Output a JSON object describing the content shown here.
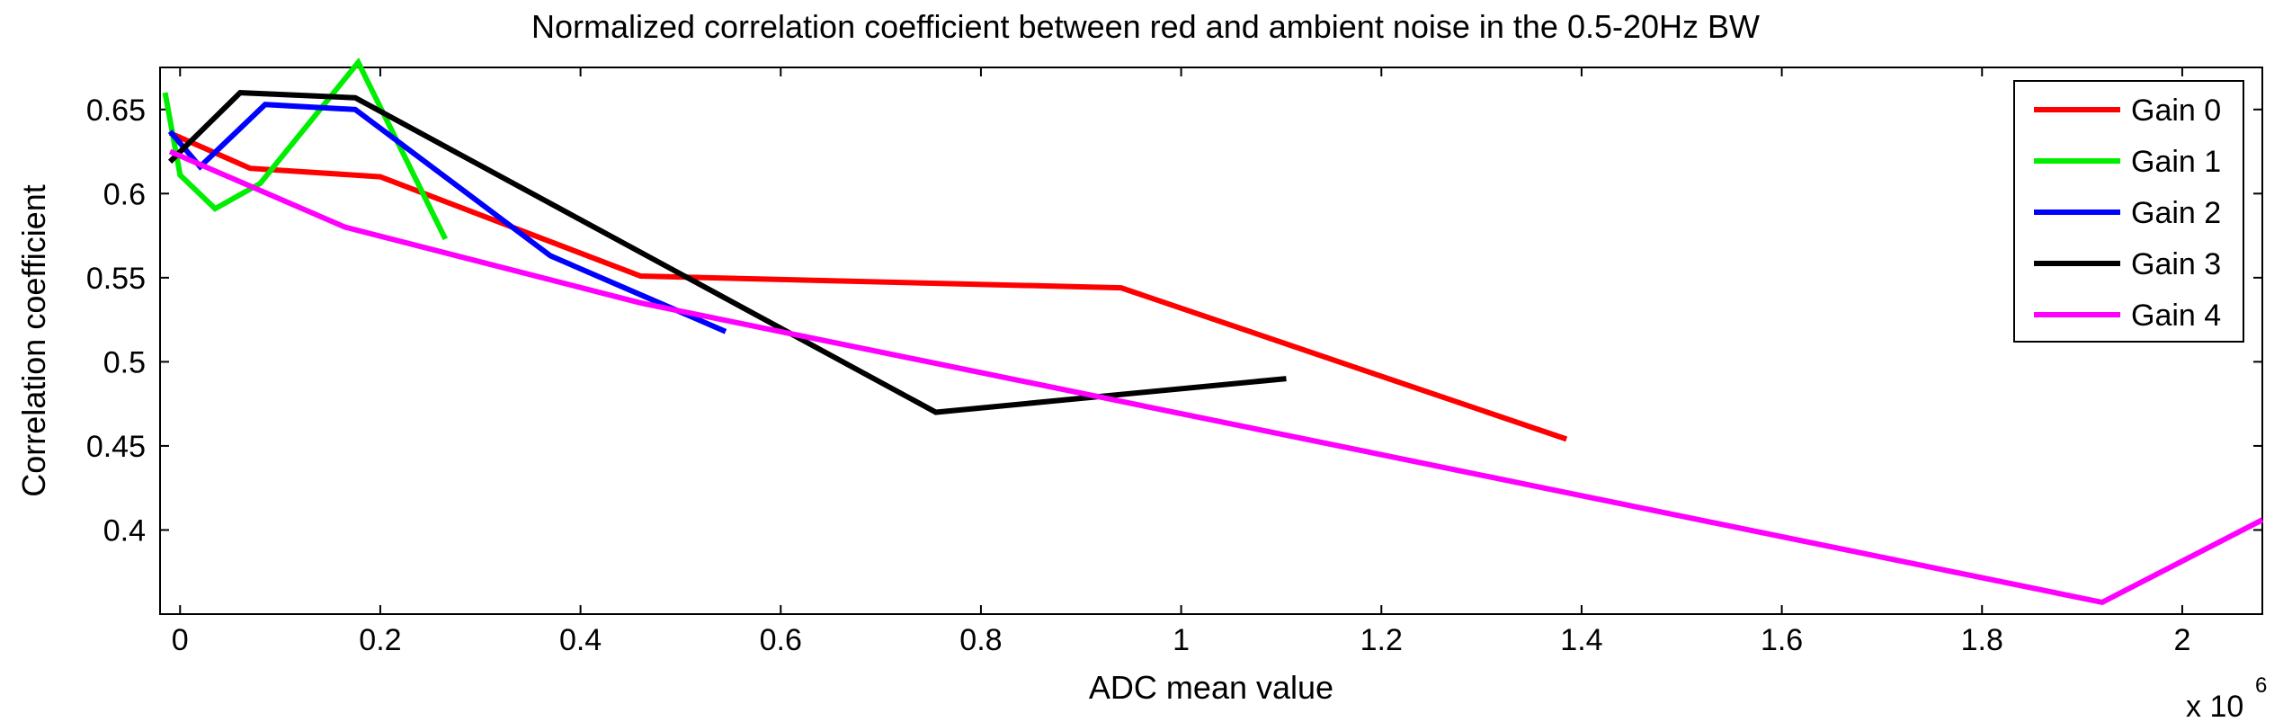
{
  "chart_data": {
    "type": "line",
    "title": "Normalized correlation coefficient between red and ambient noise in the 0.5-20Hz BW",
    "xlabel": "ADC mean value",
    "ylabel": "Correlation coefficient",
    "x_multiplier_base": "x 10",
    "x_multiplier_exponent": "6",
    "xlim": [
      -0.02,
      2.08
    ],
    "ylim": [
      0.35,
      0.675
    ],
    "x_ticks": [
      0,
      0.2,
      0.4,
      0.6,
      0.8,
      1,
      1.2,
      1.4,
      1.6,
      1.8,
      2
    ],
    "x_tick_labels": [
      "0",
      "0.2",
      "0.4",
      "0.6",
      "0.8",
      "1",
      "1.2",
      "1.4",
      "1.6",
      "1.8",
      "2"
    ],
    "y_ticks": [
      0.4,
      0.45,
      0.5,
      0.55,
      0.6,
      0.65
    ],
    "y_tick_labels": [
      "0.4",
      "0.45",
      "0.5",
      "0.55",
      "0.6",
      "0.65"
    ],
    "grid": false,
    "legend_position": "top-right",
    "series": [
      {
        "name": "Gain 0",
        "color": "#ff0000",
        "x": [
          -0.01,
          0.07,
          0.2,
          0.46,
          0.94,
          1.385
        ],
        "y": [
          0.636,
          0.615,
          0.61,
          0.551,
          0.544,
          0.454
        ]
      },
      {
        "name": "Gain 1",
        "color": "#00ee00",
        "x": [
          -0.015,
          0.0,
          0.035,
          0.08,
          0.178,
          0.265
        ],
        "y": [
          0.66,
          0.611,
          0.591,
          0.606,
          0.678,
          0.573
        ]
      },
      {
        "name": "Gain 2",
        "color": "#0000ff",
        "x": [
          -0.01,
          0.02,
          0.085,
          0.175,
          0.37,
          0.545
        ],
        "y": [
          0.637,
          0.616,
          0.653,
          0.65,
          0.563,
          0.518
        ]
      },
      {
        "name": "Gain 3",
        "color": "#000000",
        "x": [
          -0.01,
          0.06,
          0.175,
          0.755,
          1.105
        ],
        "y": [
          0.619,
          0.66,
          0.657,
          0.47,
          0.49
        ]
      },
      {
        "name": "Gain 4",
        "color": "#ff00ff",
        "x": [
          -0.01,
          0.165,
          0.46,
          1.92,
          2.08
        ],
        "y": [
          0.625,
          0.58,
          0.535,
          0.357,
          0.406
        ]
      }
    ]
  }
}
